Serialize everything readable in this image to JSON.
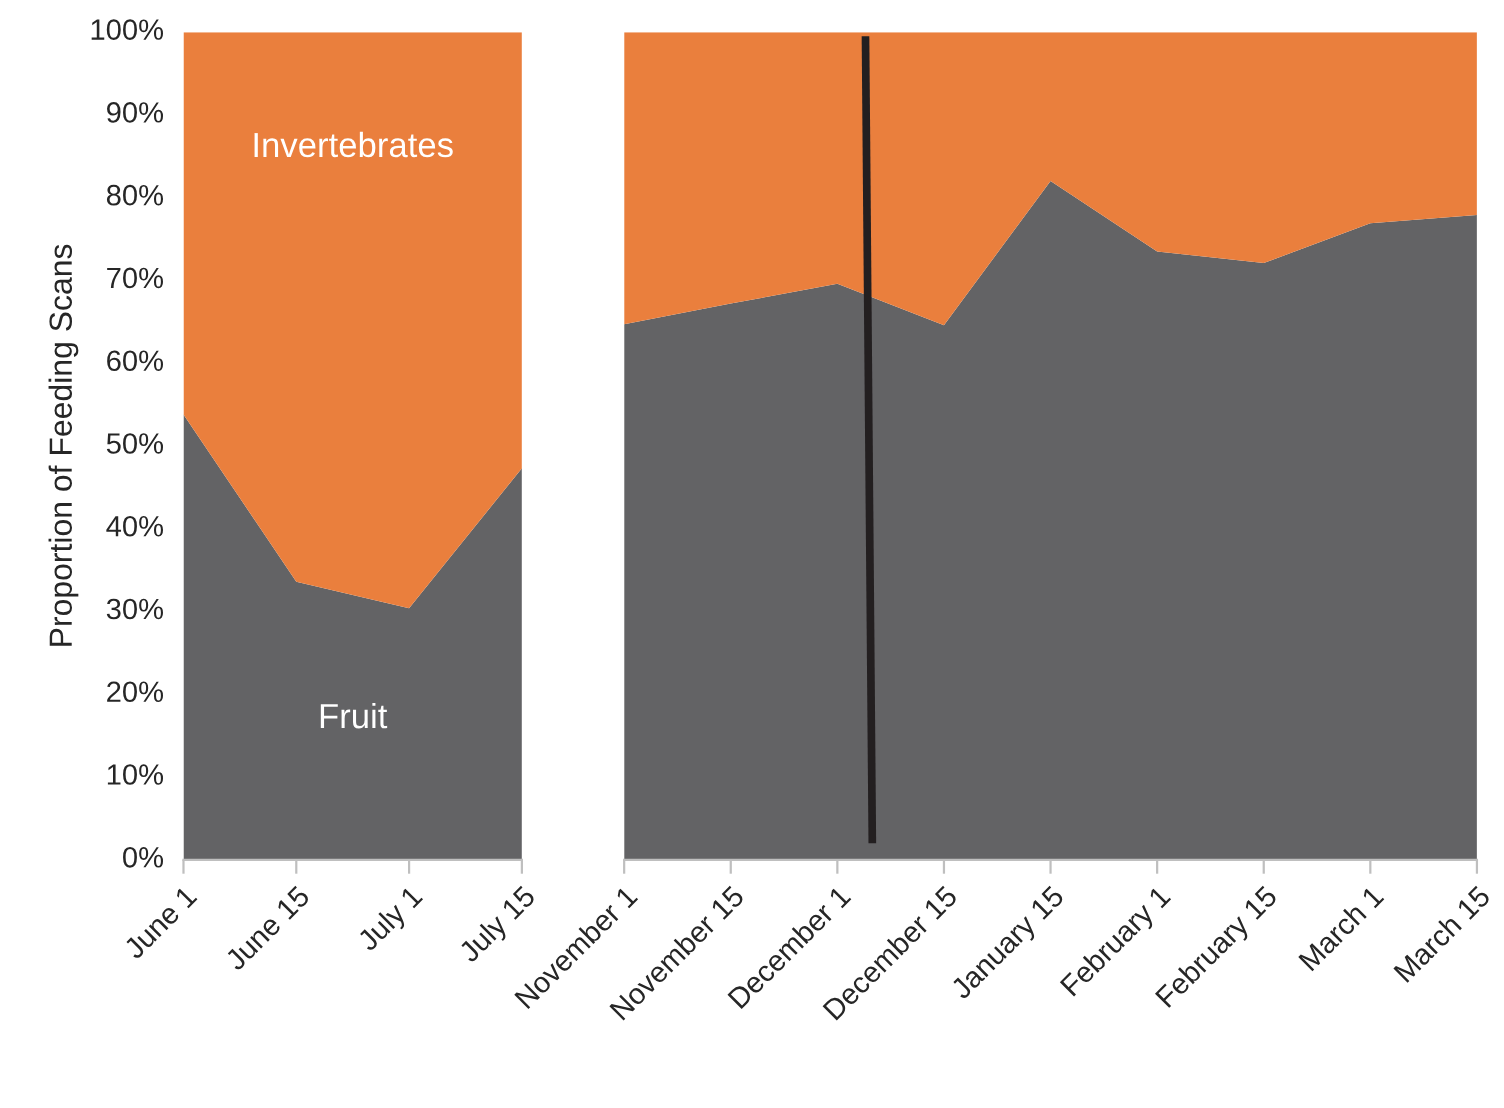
{
  "chart_data": [
    {
      "type": "area",
      "stacked": true,
      "ylabel": "Proportion of Feeding Scans",
      "categories": [
        "June 1",
        "June 15",
        "July 1",
        "July 15"
      ],
      "ylim": [
        0,
        100
      ],
      "yticks": [
        {
          "value": 0,
          "label": "0%"
        },
        {
          "value": 10,
          "label": "10%"
        },
        {
          "value": 20,
          "label": "20%"
        },
        {
          "value": 30,
          "label": "30%"
        },
        {
          "value": 40,
          "label": "40%"
        },
        {
          "value": 50,
          "label": "50%"
        },
        {
          "value": 60,
          "label": "60%"
        },
        {
          "value": 70,
          "label": "70%"
        },
        {
          "value": 80,
          "label": "80%"
        },
        {
          "value": 90,
          "label": "90%"
        },
        {
          "value": 100,
          "label": "100%"
        }
      ],
      "series": [
        {
          "name": "Fruit",
          "color": "#636365",
          "values": [
            53.8,
            33.6,
            30.4,
            47.3
          ]
        },
        {
          "name": "Invertebrates",
          "color": "#ea7f3d",
          "values": [
            46.2,
            66.4,
            69.6,
            52.7
          ]
        }
      ]
    },
    {
      "type": "area",
      "stacked": true,
      "tick_labels": "x",
      "categories": [
        "November 1",
        "November 15",
        "December 1",
        "December 15",
        "January 15",
        "February 1",
        "February 15",
        "March 1",
        "March 15"
      ],
      "ylim": [
        0,
        100
      ],
      "series": [
        {
          "color": "#636365",
          "values": [
            64.7,
            67.2,
            69.6,
            64.6,
            82.0,
            73.5,
            72.1,
            76.9,
            77.9
          ]
        },
        {
          "color": "#ea7f3d",
          "values": [
            35.3,
            32.8,
            30.4,
            35.4,
            18.0,
            26.5,
            27.9,
            23.1,
            22.1
          ]
        }
      ]
    }
  ]
}
